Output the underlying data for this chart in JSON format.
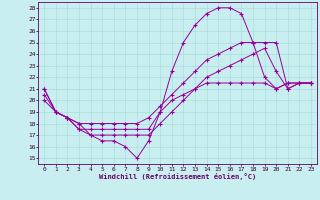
{
  "xlabel": "Windchill (Refroidissement éolien,°C)",
  "bg_color": "#c8eef0",
  "grid_color": "#aadddd",
  "line_color": "#990099",
  "xlim": [
    -0.5,
    23.5
  ],
  "ylim": [
    14.5,
    28.5
  ],
  "xticks": [
    0,
    1,
    2,
    3,
    4,
    5,
    6,
    7,
    8,
    9,
    10,
    11,
    12,
    13,
    14,
    15,
    16,
    17,
    18,
    19,
    20,
    21,
    22,
    23
  ],
  "yticks": [
    15,
    16,
    17,
    18,
    19,
    20,
    21,
    22,
    23,
    24,
    25,
    26,
    27,
    28
  ],
  "line1_x": [
    0,
    1,
    2,
    3,
    4,
    5,
    6,
    7,
    8,
    9,
    10,
    11,
    12,
    13,
    14,
    15,
    16,
    17,
    18,
    19,
    20,
    21,
    22,
    23
  ],
  "line1_y": [
    21,
    19,
    18.5,
    18,
    17,
    16.5,
    16.5,
    16,
    15,
    16.5,
    19,
    22.5,
    25,
    26.5,
    27.5,
    28,
    28,
    27.5,
    25,
    22,
    21,
    21.5,
    21.5,
    21.5
  ],
  "line2_x": [
    0,
    1,
    2,
    3,
    4,
    5,
    6,
    7,
    8,
    9,
    10,
    11,
    12,
    13,
    14,
    15,
    16,
    17,
    18,
    19,
    20,
    21,
    22,
    23
  ],
  "line2_y": [
    21,
    19,
    18.5,
    17.5,
    17.5,
    17.5,
    17.5,
    17.5,
    17.5,
    17.5,
    19,
    20,
    20.5,
    21,
    21.5,
    21.5,
    21.5,
    21.5,
    21.5,
    21.5,
    21,
    21.5,
    21.5,
    21.5
  ],
  "line3_x": [
    0,
    1,
    2,
    3,
    4,
    5,
    6,
    7,
    8,
    9,
    10,
    11,
    12,
    13,
    14,
    15,
    16,
    17,
    18,
    19,
    20,
    21,
    22,
    23
  ],
  "line3_y": [
    20.5,
    19,
    18.5,
    17.5,
    17,
    17,
    17,
    17,
    17,
    17,
    18,
    19,
    20,
    21,
    22,
    22.5,
    23,
    23.5,
    24,
    24.5,
    22.5,
    21,
    21.5,
    21.5
  ],
  "line4_x": [
    0,
    1,
    2,
    3,
    4,
    5,
    6,
    7,
    8,
    9,
    10,
    11,
    12,
    13,
    14,
    15,
    16,
    17,
    18,
    19,
    20,
    21,
    22,
    23
  ],
  "line4_y": [
    20,
    19,
    18.5,
    18,
    18,
    18,
    18,
    18,
    18,
    18.5,
    19.5,
    20.5,
    21.5,
    22.5,
    23.5,
    24,
    24.5,
    25,
    25,
    25,
    25,
    21,
    21.5,
    21.5
  ]
}
